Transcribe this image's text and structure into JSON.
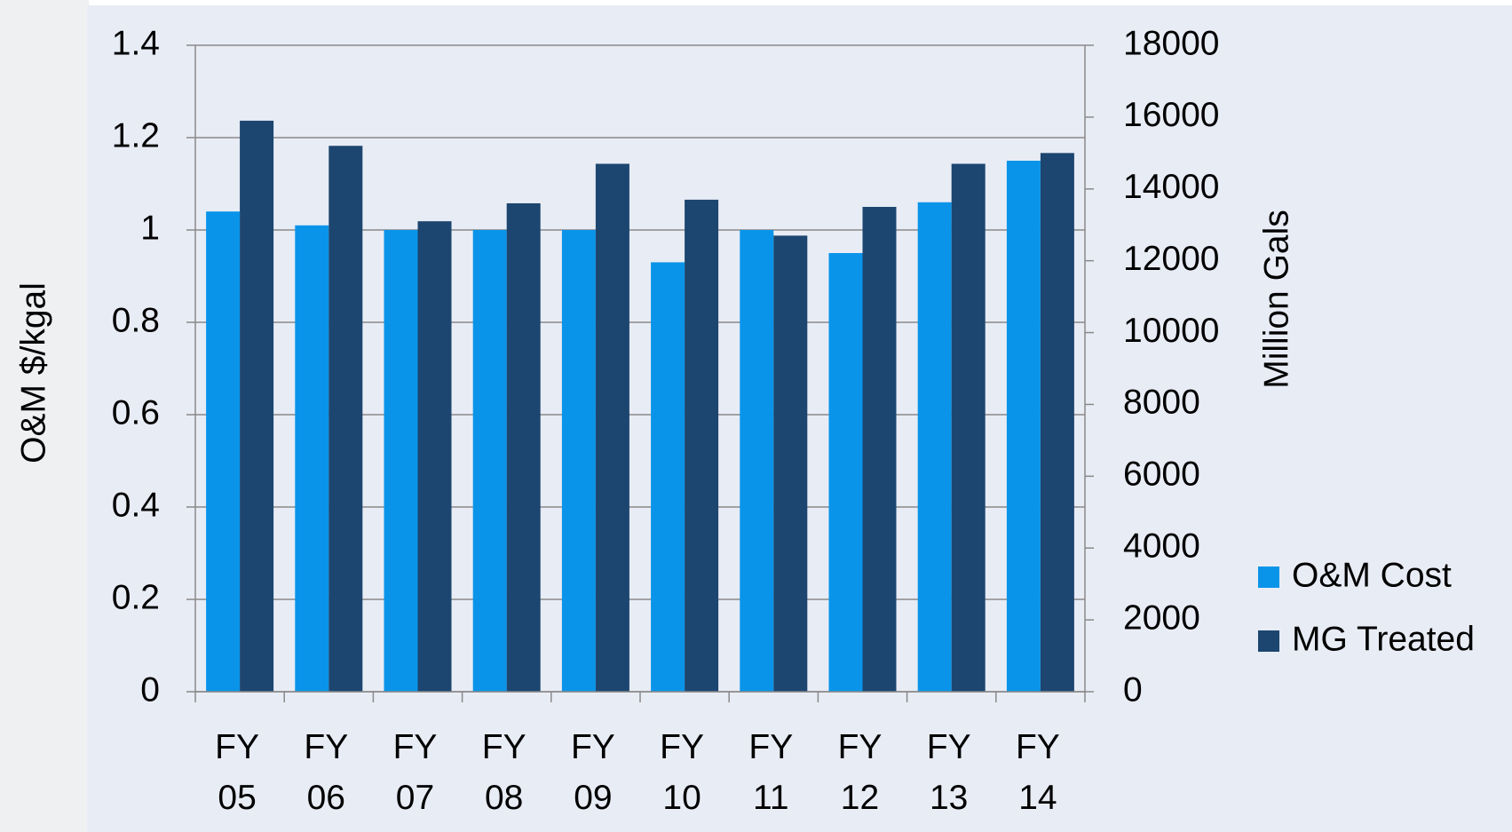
{
  "chart_data": {
    "type": "bar",
    "categories": [
      "FY 05",
      "FY 06",
      "FY 07",
      "FY 08",
      "FY 09",
      "FY 10",
      "FY 11",
      "FY 12",
      "FY 13",
      "FY 14"
    ],
    "series": [
      {
        "name": "O&M Cost",
        "color": "#0994ea",
        "values": [
          1.04,
          1.01,
          1.0,
          1.0,
          1.0,
          0.93,
          1.0,
          0.95,
          1.06,
          1.15
        ]
      },
      {
        "name": "MG Treated",
        "color": "#1c4670",
        "axis": "y2",
        "values": [
          15900,
          15200,
          13100,
          13600,
          14700,
          13700,
          12700,
          13500,
          14700,
          15000
        ]
      }
    ],
    "y_label": "O&M $/kgal",
    "y2_label": "Million Gals",
    "ylim": [
      0,
      1.4
    ],
    "yticks": [
      0,
      0.2,
      0.4,
      0.6,
      0.8,
      1,
      1.2,
      1.4
    ],
    "y2lim": [
      0,
      18000
    ],
    "y2ticks": [
      0,
      2000,
      4000,
      6000,
      8000,
      10000,
      12000,
      14000,
      16000,
      18000
    ],
    "grid": true,
    "legend": "right"
  }
}
